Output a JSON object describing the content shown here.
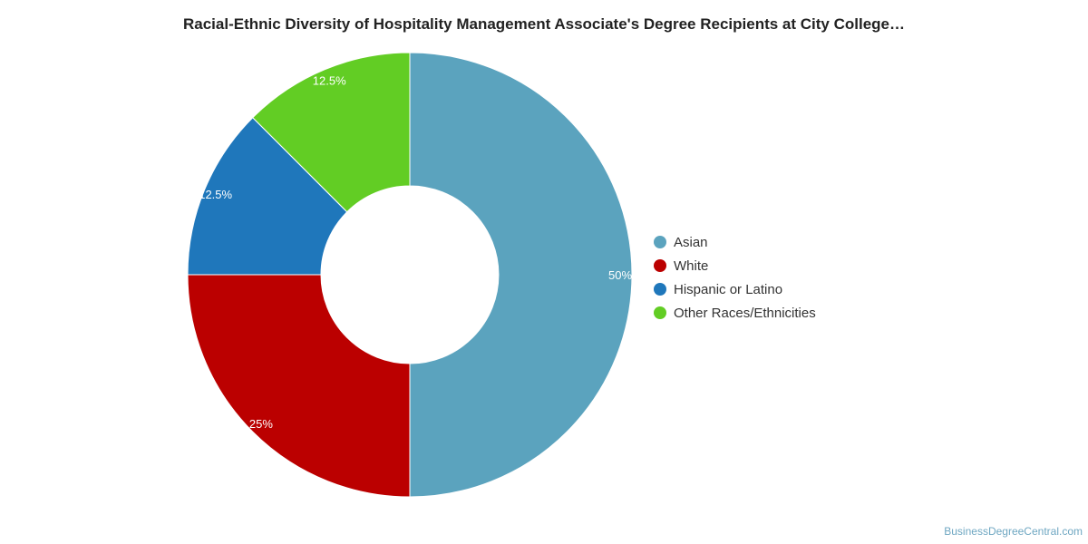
{
  "title": "Racial-Ethnic Diversity of Hospitality Management Associate's Degree Recipients at City College…",
  "credit": "BusinessDegreeCentral.com",
  "chart_data": {
    "type": "pie",
    "style": "donut",
    "title": "Racial-Ethnic Diversity of Hospitality Management Associate's Degree Recipients at City College…",
    "legend_position": "right",
    "slices": [
      {
        "label": "Asian",
        "value": 50,
        "display": "50%",
        "color": "#5ba3be"
      },
      {
        "label": "White",
        "value": 25,
        "display": "25%",
        "color": "#bb0000"
      },
      {
        "label": "Hispanic or Latino",
        "value": 12.5,
        "display": "12.5%",
        "color": "#1f77bb"
      },
      {
        "label": "Other Races/Ethnicities",
        "value": 12.5,
        "display": "12.5%",
        "color": "#62cd24"
      }
    ]
  }
}
